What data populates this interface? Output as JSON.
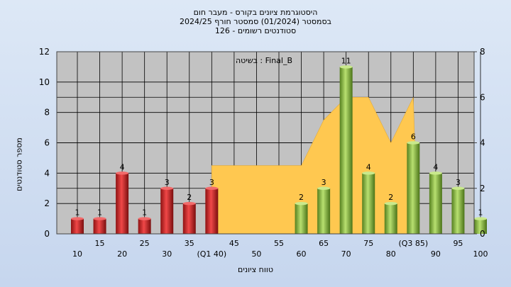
{
  "titles": {
    "line1": "היסטוגרמת ציונים בקורס - מעבר חום",
    "line2": "בסמסטר  (01/2024)  סמסטר חורף 2024/25",
    "line3": "סטודנטים רשומים - 126"
  },
  "chart_data": {
    "type": "bar",
    "title": "היסטוגרמת ציונים בקורס - מעבר חום",
    "xlabel": "טווח ציונים",
    "ylabel": "מספר סטודנטים",
    "ylim": [
      0,
      12
    ],
    "y2lim": [
      0,
      8
    ],
    "yticks": [
      0,
      2,
      4,
      6,
      8,
      10,
      12
    ],
    "y2ticks": [
      0,
      2,
      4,
      6,
      8
    ],
    "grid": true,
    "legend": "בשיטה : Final_B",
    "categories": [
      "10",
      "15",
      "20",
      "25",
      "30",
      "35",
      "(Q1 40)",
      "45",
      "50",
      "55",
      "60",
      "65",
      "70",
      "75",
      "80",
      "(Q3 85)",
      "90",
      "95",
      "100"
    ],
    "series": [
      {
        "values": [
          1,
          1,
          4,
          1,
          3,
          2,
          3,
          0,
          0,
          0,
          2,
          3,
          11,
          4,
          2,
          6,
          4,
          3,
          1
        ],
        "bar_colors": [
          "#d93030",
          "#d93030",
          "#d93030",
          "#d93030",
          "#d93030",
          "#d93030",
          "#d93030",
          "#d93030",
          "#d93030",
          "#d93030",
          "#8cc043",
          "#8cc043",
          "#8cc043",
          "#8cc043",
          "#8cc043",
          "#8cc043",
          "#8cc043",
          "#8cc043",
          "#8cc043"
        ],
        "data_labels": [
          "1",
          "1",
          "4",
          "1",
          "3",
          "2",
          "3",
          "",
          "",
          "",
          "2",
          "3",
          "11",
          "4",
          "2",
          "6",
          "4",
          "3",
          "1"
        ]
      },
      {
        "type": "area",
        "axis": "secondary",
        "color": "#ffc850",
        "points": [
          [
            40,
            0
          ],
          [
            40,
            3
          ],
          [
            45,
            3
          ],
          [
            50,
            3
          ],
          [
            55,
            3
          ],
          [
            60,
            3
          ],
          [
            65,
            5
          ],
          [
            70,
            6
          ],
          [
            75,
            6
          ],
          [
            80,
            4
          ],
          [
            85,
            6
          ],
          [
            86,
            0
          ]
        ]
      }
    ]
  }
}
